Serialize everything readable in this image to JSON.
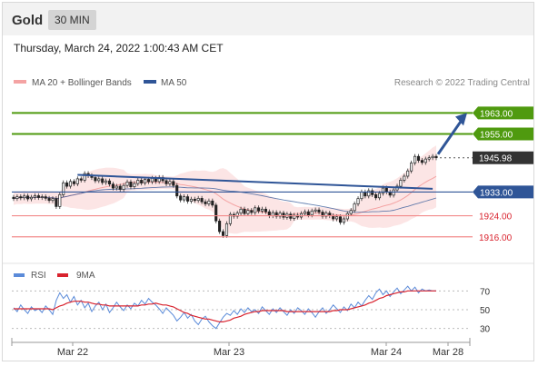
{
  "header": {
    "title": "Gold",
    "timeframe": "30 MIN"
  },
  "datetime": "Thursday, March 24, 2022 1:00:43 AM CET",
  "copyright": "Research © 2022 Trading Central",
  "colors": {
    "bollinger": "#f4a3a3",
    "ma50": "#2f5597",
    "resistance": "#4f9a0f",
    "pivot": "#2f5597",
    "support": "#f28b8b",
    "price_tag": "#333333",
    "rsi": "#5b8bd9",
    "rsi_ma": "#d9232e"
  },
  "chart_data": [
    {
      "type": "candlestick",
      "title": "Gold",
      "legend": [
        {
          "name": "MA 20 + Bollinger Bands",
          "color": "#f4a3a3"
        },
        {
          "name": "MA 50",
          "color": "#2f5597"
        }
      ],
      "x_ticks": [
        "Mar 22",
        "Mar 23",
        "Mar 24",
        "Mar 28"
      ],
      "ylim": [
        1908,
        1970
      ],
      "levels": [
        {
          "value": 1963.0,
          "label": "1963.00",
          "kind": "resistance"
        },
        {
          "value": 1955.0,
          "label": "1955.00",
          "kind": "resistance"
        },
        {
          "value": 1945.98,
          "label": "1945.98",
          "kind": "last_price"
        },
        {
          "value": 1933.0,
          "label": "1933.00",
          "kind": "pivot"
        },
        {
          "value": 1924.0,
          "label": "1924.00",
          "kind": "support"
        },
        {
          "value": 1916.0,
          "label": "1916.00",
          "kind": "support"
        }
      ],
      "close": [
        1930.5,
        1931.2,
        1930.8,
        1931.5,
        1930.4,
        1931.0,
        1931.6,
        1930.9,
        1931.2,
        1930.6,
        1929.8,
        1930.5,
        1927.5,
        1932.0,
        1936.5,
        1935.2,
        1937.0,
        1936.1,
        1938.0,
        1937.5,
        1940.0,
        1939.2,
        1938.5,
        1937.3,
        1938.0,
        1936.6,
        1937.2,
        1936.0,
        1934.5,
        1935.2,
        1934.0,
        1935.5,
        1936.8,
        1935.0,
        1936.2,
        1937.5,
        1936.4,
        1937.8,
        1936.9,
        1938.2,
        1937.0,
        1938.5,
        1937.3,
        1936.1,
        1937.0,
        1935.5,
        1931.5,
        1930.0,
        1931.2,
        1929.5,
        1930.3,
        1929.8,
        1930.6,
        1929.3,
        1928.5,
        1929.6,
        1928.0,
        1922.0,
        1918.0,
        1916.5,
        1921.0,
        1924.5,
        1923.8,
        1925.0,
        1926.5,
        1924.8,
        1926.0,
        1925.2,
        1927.0,
        1925.8,
        1926.5,
        1925.5,
        1924.0,
        1925.2,
        1923.8,
        1925.0,
        1923.4,
        1924.6,
        1923.0,
        1924.2,
        1923.5,
        1924.8,
        1925.5,
        1924.3,
        1925.8,
        1926.2,
        1925.4,
        1923.8,
        1925.0,
        1924.0,
        1922.8,
        1923.6,
        1921.5,
        1922.8,
        1924.8,
        1926.0,
        1928.5,
        1930.5,
        1933.0,
        1931.5,
        1933.5,
        1932.0,
        1930.8,
        1932.5,
        1934.5,
        1933.0,
        1931.8,
        1933.8,
        1935.2,
        1937.5,
        1939.0,
        1941.0,
        1944.0,
        1946.5,
        1945.0,
        1944.2,
        1945.5,
        1946.0,
        1946.5,
        1945.98
      ],
      "open": [
        1931.0,
        1930.5,
        1931.2,
        1930.8,
        1931.5,
        1930.4,
        1931.0,
        1931.6,
        1930.9,
        1931.2,
        1930.6,
        1929.8,
        1930.5,
        1927.5,
        1932.0,
        1936.5,
        1935.2,
        1937.0,
        1936.1,
        1938.0,
        1937.5,
        1940.0,
        1939.2,
        1938.5,
        1937.3,
        1938.0,
        1936.6,
        1937.2,
        1936.0,
        1934.5,
        1935.2,
        1934.0,
        1935.5,
        1936.8,
        1935.0,
        1936.2,
        1937.5,
        1936.4,
        1937.8,
        1936.9,
        1938.2,
        1937.0,
        1938.5,
        1937.3,
        1936.1,
        1937.0,
        1935.5,
        1931.5,
        1930.0,
        1931.2,
        1929.5,
        1930.3,
        1929.8,
        1930.6,
        1929.3,
        1928.5,
        1929.6,
        1928.0,
        1922.0,
        1918.0,
        1916.5,
        1921.0,
        1924.5,
        1923.8,
        1925.0,
        1926.5,
        1924.8,
        1926.0,
        1925.2,
        1927.0,
        1925.8,
        1926.5,
        1925.5,
        1924.0,
        1925.2,
        1923.8,
        1925.0,
        1923.4,
        1924.6,
        1923.0,
        1924.2,
        1923.5,
        1924.8,
        1925.5,
        1924.3,
        1925.8,
        1926.2,
        1925.4,
        1923.8,
        1925.0,
        1924.0,
        1922.8,
        1923.6,
        1921.5,
        1922.8,
        1924.8,
        1926.0,
        1928.5,
        1930.5,
        1933.0,
        1931.5,
        1933.5,
        1932.0,
        1930.8,
        1932.5,
        1934.5,
        1933.0,
        1931.8,
        1933.8,
        1935.2,
        1937.5,
        1939.0,
        1941.0,
        1944.0,
        1946.5,
        1945.0,
        1944.2,
        1945.5,
        1946.0,
        1946.5
      ],
      "trendline_start": 1939.5,
      "trendline_end": 1934.2,
      "arrow_target": 1963.0
    },
    {
      "type": "line",
      "legend": [
        {
          "name": "RSI",
          "color": "#5b8bd9"
        },
        {
          "name": "9MA",
          "color": "#d9232e"
        }
      ],
      "ylim": [
        20,
        80
      ],
      "y_ticks": [
        70,
        50,
        30
      ],
      "series": [
        {
          "name": "RSI",
          "values": [
            52,
            48,
            55,
            50,
            46,
            53,
            49,
            51,
            47,
            54,
            50,
            45,
            60,
            68,
            62,
            66,
            58,
            64,
            55,
            60,
            52,
            57,
            48,
            54,
            58,
            50,
            56,
            47,
            52,
            58,
            53,
            49,
            55,
            51,
            57,
            54,
            60,
            56,
            62,
            58,
            55,
            51,
            46,
            52,
            48,
            44,
            38,
            42,
            47,
            41,
            45,
            38,
            34,
            40,
            43,
            37,
            33,
            30,
            36,
            42,
            46,
            44,
            49,
            45,
            51,
            47,
            52,
            48,
            50,
            46,
            53,
            49,
            45,
            51,
            47,
            52,
            48,
            44,
            50,
            46,
            52,
            49,
            45,
            51,
            47,
            42,
            48,
            52,
            46,
            50,
            55,
            51,
            47,
            53,
            49,
            56,
            52,
            58,
            54,
            60,
            65,
            61,
            68,
            72,
            66,
            70,
            64,
            69,
            73,
            67,
            71,
            75,
            70,
            74,
            68,
            72,
            70,
            71,
            70,
            70
          ]
        },
        {
          "name": "9MA",
          "values": [
            51,
            51,
            51,
            51,
            51,
            51,
            51,
            51,
            51,
            51,
            51,
            50,
            52,
            54,
            55,
            57,
            58,
            59,
            59,
            59,
            58,
            58,
            57,
            56,
            56,
            55,
            55,
            54,
            54,
            54,
            54,
            54,
            54,
            54,
            54,
            54,
            55,
            55,
            56,
            56,
            57,
            56,
            55,
            55,
            54,
            53,
            51,
            49,
            47,
            46,
            44,
            43,
            42,
            41,
            40,
            40,
            39,
            38,
            37,
            37,
            38,
            39,
            41,
            42,
            43,
            45,
            46,
            47,
            48,
            48,
            49,
            49,
            49,
            49,
            49,
            49,
            49,
            48,
            48,
            48,
            48,
            48,
            48,
            48,
            48,
            48,
            48,
            48,
            48,
            48,
            49,
            49,
            50,
            50,
            50,
            51,
            52,
            53,
            54,
            55,
            57,
            58,
            60,
            62,
            63,
            65,
            66,
            67,
            68,
            69,
            69,
            70,
            70,
            70,
            70,
            70,
            70,
            70,
            70,
            70
          ]
        }
      ]
    }
  ]
}
